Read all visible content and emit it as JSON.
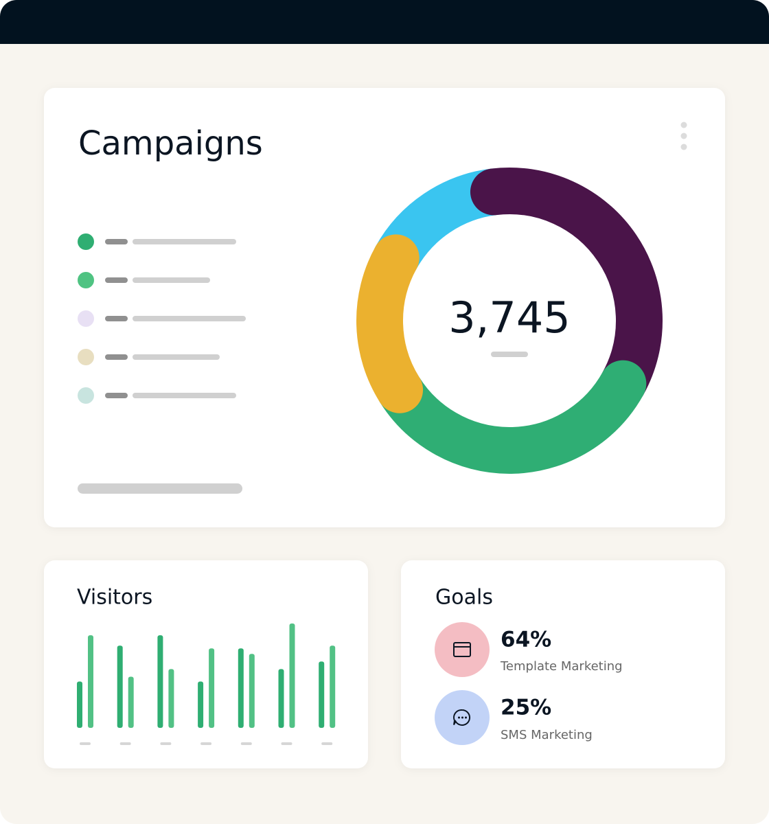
{
  "campaigns": {
    "title": "Campaigns",
    "donut": {
      "type": "donut",
      "center_label": "3,745",
      "segments": [
        {
          "color": "#4a1449",
          "value": 35
        },
        {
          "color": "#2fae74",
          "value": 33
        },
        {
          "color": "#ebb12f",
          "value": 17
        },
        {
          "color": "#3ac5f0",
          "value": 15
        }
      ]
    }
  },
  "visitors": {
    "title": "Visitors",
    "chart_data": {
      "type": "bar",
      "ylim": [
        0,
        150
      ],
      "series": [
        {
          "color": "#2fae72",
          "values": [
            67,
            119,
            134,
            67,
            115,
            85,
            96
          ]
        },
        {
          "color": "#52c185",
          "values": [
            134,
            74,
            85,
            115,
            107,
            151,
            119
          ]
        }
      ]
    }
  },
  "goals": {
    "title": "Goals",
    "items": [
      {
        "value": "64%",
        "label": "Template Marketing"
      },
      {
        "value": "25%",
        "label": "SMS Marketing"
      }
    ]
  }
}
